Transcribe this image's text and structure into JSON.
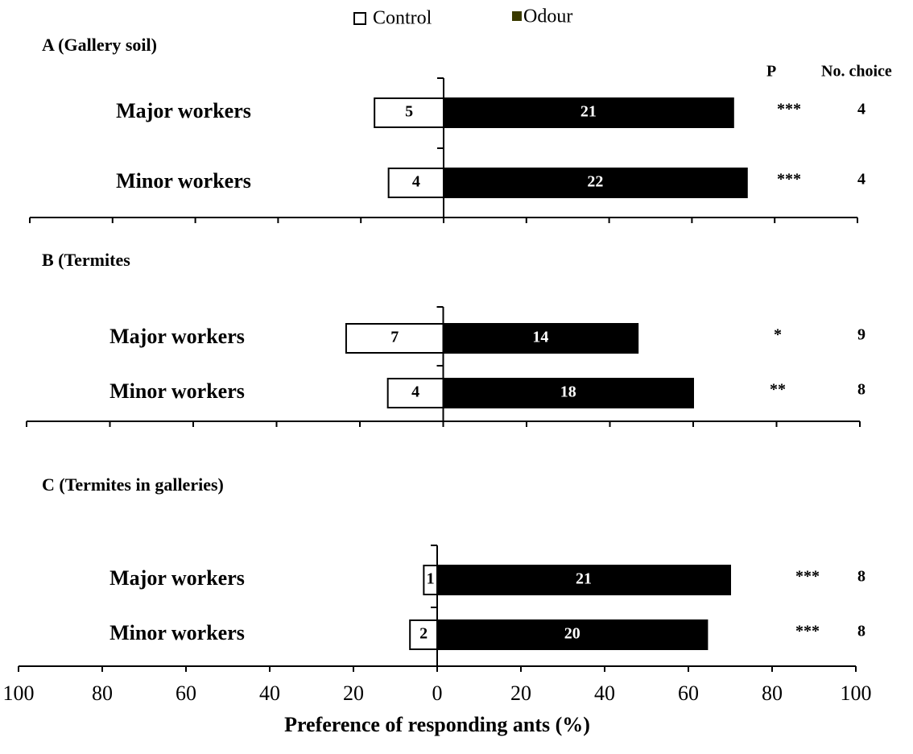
{
  "column_headers": {
    "p": "P",
    "no_choice": "No. choice"
  },
  "chart_data": [
    {
      "type": "bar",
      "title": "A (Gallery soil)",
      "categories": [
        "Major workers",
        "Minor workers"
      ],
      "series": [
        {
          "name": "Control",
          "color": "#ffffff",
          "values": [
            -16.7,
            -13.3
          ],
          "counts": [
            5,
            4
          ]
        },
        {
          "name": "Odour",
          "color": "#000000",
          "values": [
            70,
            73.3
          ],
          "counts": [
            21,
            22
          ]
        }
      ],
      "significance": [
        "***",
        "***"
      ],
      "no_choice": [
        4,
        4
      ],
      "xlim": [
        -100,
        100
      ],
      "xticks": [
        -100,
        -80,
        -60,
        -40,
        -20,
        0,
        20,
        40,
        60,
        80,
        100
      ]
    },
    {
      "type": "bar",
      "title": "B (Termites",
      "categories": [
        "Major workers",
        "Minor workers"
      ],
      "series": [
        {
          "color": "#ffffff",
          "values": [
            -23.3,
            -13.3
          ],
          "counts": [
            7,
            4
          ]
        },
        {
          "color": "#000000",
          "values": [
            46.7,
            60
          ],
          "counts": [
            14,
            18
          ]
        }
      ],
      "significance": [
        "*",
        "**"
      ],
      "no_choice": [
        9,
        8
      ],
      "xlim": [
        -100,
        100
      ],
      "xticks": [
        -100,
        -80,
        -60,
        -40,
        -20,
        0,
        20,
        40,
        60,
        80,
        100
      ]
    },
    {
      "type": "bar",
      "title": "C (Termites in galleries)",
      "categories": [
        "Major workers",
        "Minor workers"
      ],
      "series": [
        {
          "color": "#ffffff",
          "values": [
            -3.2,
            -6.5
          ],
          "counts": [
            1,
            2
          ]
        },
        {
          "color": "#000000",
          "values": [
            70,
            64.5
          ],
          "counts": [
            21,
            20
          ]
        }
      ],
      "significance": [
        "***",
        "***"
      ],
      "no_choice": [
        8,
        8
      ],
      "xlim": [
        -100,
        100
      ],
      "xticks": [
        {
          "value": -100,
          "label": "100"
        },
        {
          "value": -80,
          "label": "80"
        },
        {
          "value": -60,
          "label": "60"
        },
        {
          "value": -40,
          "label": "40"
        },
        {
          "value": -20,
          "label": "20"
        },
        0,
        20,
        40,
        60,
        80,
        100
      ],
      "xlabel": "Preference of responding ants (%)"
    }
  ]
}
